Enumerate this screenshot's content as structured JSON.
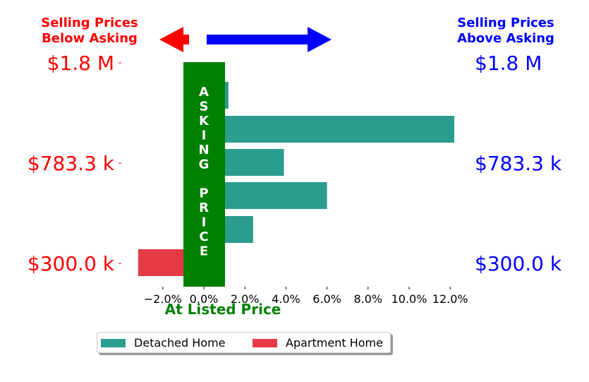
{
  "header": {
    "left_line1": "Selling Prices",
    "left_line2": "Below Asking",
    "right_line1": "Selling Prices",
    "right_line2": "Above Asking",
    "left_color": "#ff0000",
    "right_color": "#0000ff"
  },
  "price_labels": {
    "left": [
      "$1.8 M",
      "$783.3 k",
      "$300.0 k"
    ],
    "right": [
      "$1.8 M",
      "$783.3 k",
      "$300.0 k"
    ]
  },
  "asking_band": {
    "text_top": [
      "A",
      "S",
      "K",
      "I",
      "N",
      "G"
    ],
    "text_bottom": [
      "P",
      "R",
      "I",
      "C",
      "E"
    ],
    "color": "#008000"
  },
  "xaxis_label": "At Listed Price",
  "legend": [
    {
      "label": "Detached Home",
      "color": "#2a9d8f"
    },
    {
      "label": "Apartment Home",
      "color": "#e63946"
    }
  ],
  "chart_data": {
    "type": "bar",
    "orientation": "horizontal",
    "xlabel": "At Listed Price",
    "xlim": [
      -3.3,
      12.0
    ],
    "x_ticks": [
      -2.0,
      0.0,
      2.0,
      4.0,
      6.0,
      8.0,
      10.0,
      12.0
    ],
    "x_tick_labels": [
      "−2.0%",
      "0.0%",
      "2.0%",
      "4.0%",
      "6.0%",
      "8.0%",
      "10.0%",
      "12.0%"
    ],
    "price_ticks": [
      "$1.8 M",
      "$783.3 k",
      "$300.0 k"
    ],
    "series": [
      {
        "name": "Detached Home",
        "color": "#2a9d8f",
        "bars": [
          {
            "row": 1,
            "value": 1.2
          },
          {
            "row": 2,
            "value": 12.2
          },
          {
            "row": 3,
            "value": 3.9
          },
          {
            "row": 4,
            "value": 6.0
          },
          {
            "row": 5,
            "value": 2.4
          }
        ]
      },
      {
        "name": "Apartment Home",
        "color": "#e63946",
        "bars": [
          {
            "row": 6,
            "value": -3.2
          }
        ]
      }
    ]
  }
}
